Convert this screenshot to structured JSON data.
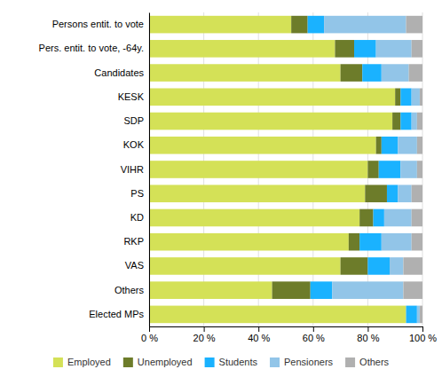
{
  "chart_data": {
    "type": "bar",
    "orientation": "horizontal",
    "stacked": true,
    "categories": [
      "Persons entit. to vote",
      "Pers. entit. to vote, -64y.",
      "Candidates",
      "KESK",
      "SDP",
      "KOK",
      "VIHR",
      "PS",
      "KD",
      "RKP",
      "VAS",
      "Others",
      "Elected MPs"
    ],
    "series": [
      {
        "name": "Employed",
        "color": "#d4e157",
        "values": [
          52,
          68,
          70,
          90,
          89,
          83,
          80,
          79,
          77,
          73,
          70,
          45,
          94
        ]
      },
      {
        "name": "Unemployed",
        "color": "#6d7c2a",
        "values": [
          6,
          7,
          8,
          2,
          3,
          2,
          4,
          8,
          5,
          4,
          10,
          14,
          0
        ]
      },
      {
        "name": "Students",
        "color": "#1ab2ff",
        "values": [
          6,
          8,
          7,
          4,
          4,
          6,
          8,
          4,
          4,
          8,
          8,
          8,
          4
        ]
      },
      {
        "name": "Pensioners",
        "color": "#92c5e8",
        "values": [
          30,
          13,
          10,
          3,
          2,
          7,
          6,
          5,
          10,
          11,
          5,
          26,
          1
        ]
      },
      {
        "name": "Others",
        "color": "#b0b0b0",
        "values": [
          6,
          4,
          5,
          1,
          2,
          2,
          2,
          4,
          4,
          4,
          7,
          7,
          1
        ]
      }
    ],
    "xlim": [
      0,
      100
    ],
    "xticks": [
      {
        "value": 0,
        "label": "0 %"
      },
      {
        "value": 20,
        "label": "20 %"
      },
      {
        "value": 40,
        "label": "40 %"
      },
      {
        "value": 60,
        "label": "60 %"
      },
      {
        "value": 80,
        "label": "80 %"
      },
      {
        "value": 100,
        "label": "100 %"
      }
    ],
    "grid": true,
    "legend": "bottom"
  }
}
